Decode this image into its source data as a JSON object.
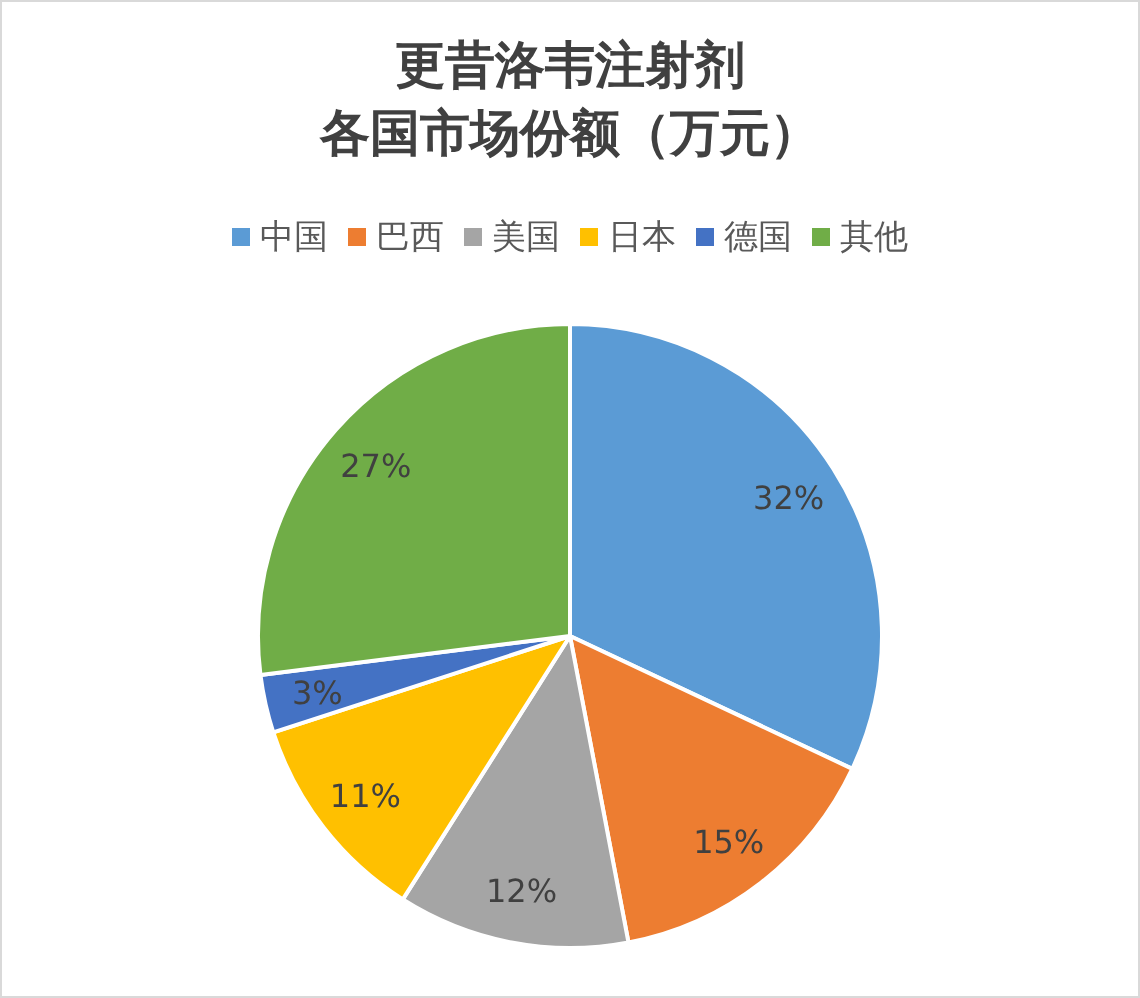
{
  "chart_data": {
    "type": "pie",
    "title": "更昔洛韦注射剂各国市场份额（万元）",
    "categories": [
      "中国",
      "巴西",
      "美国",
      "日本",
      "德国",
      "其他"
    ],
    "values": [
      32,
      15,
      12,
      11,
      3,
      27
    ],
    "colors": [
      "#5b9bd5",
      "#ed7d31",
      "#a5a5a5",
      "#ffc000",
      "#4472c4",
      "#70ad47"
    ],
    "value_labels": [
      "32%",
      "15%",
      "12%",
      "11%",
      "3%",
      "27%"
    ],
    "legend": "top"
  }
}
